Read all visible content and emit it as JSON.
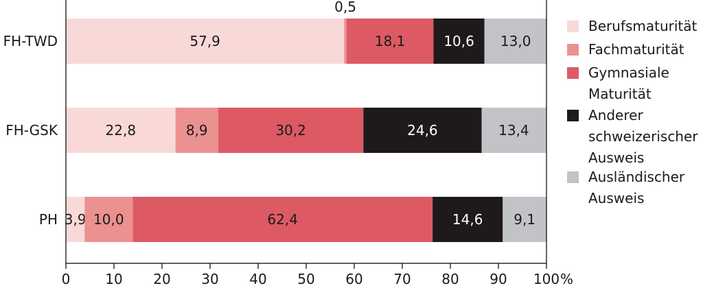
{
  "chart_data": {
    "type": "bar",
    "orientation": "horizontal",
    "stacked": true,
    "categories": [
      "FH-TWD",
      "FH-GSK",
      "PH"
    ],
    "series": [
      {
        "name": "Berufsmaturität",
        "values": [
          57.9,
          22.8,
          3.9
        ],
        "labels": [
          "57,9",
          "22,8",
          "3,9"
        ],
        "color": "#f8d9d7"
      },
      {
        "name": "Fachmaturität",
        "values": [
          0.5,
          8.9,
          10.0
        ],
        "labels": [
          "0,5",
          "8,9",
          "10,0"
        ],
        "color": "#eb9190"
      },
      {
        "name": "Gymnasiale Maturität",
        "values": [
          18.1,
          30.2,
          62.4
        ],
        "labels": [
          "18,1",
          "30,2",
          "62,4"
        ],
        "color": "#dd5a64"
      },
      {
        "name": "Anderer schweizerischer Ausweis",
        "values": [
          10.6,
          24.6,
          14.6
        ],
        "labels": [
          "10,6",
          "24,6",
          "14,6"
        ],
        "color": "#1e1a1b"
      },
      {
        "name": "Ausländischer Ausweis",
        "values": [
          13.0,
          13.4,
          9.1
        ],
        "labels": [
          "13,0",
          "13,4",
          "9,1"
        ],
        "color": "#c2c3c7"
      }
    ],
    "legend_lines": [
      [
        "Berufsmaturität"
      ],
      [
        "Fachmaturität"
      ],
      [
        "Gymnasiale",
        "Maturität"
      ],
      [
        "Anderer",
        "schweizerischer",
        "Ausweis"
      ],
      [
        "Ausländischer",
        "Ausweis"
      ]
    ],
    "x_ticks": [
      "0",
      "10",
      "20",
      "30",
      "40",
      "50",
      "60",
      "70",
      "80",
      "90",
      "100"
    ],
    "x_unit": "%",
    "xlim": [
      0,
      100
    ],
    "legend_position": "right",
    "grid": false
  }
}
